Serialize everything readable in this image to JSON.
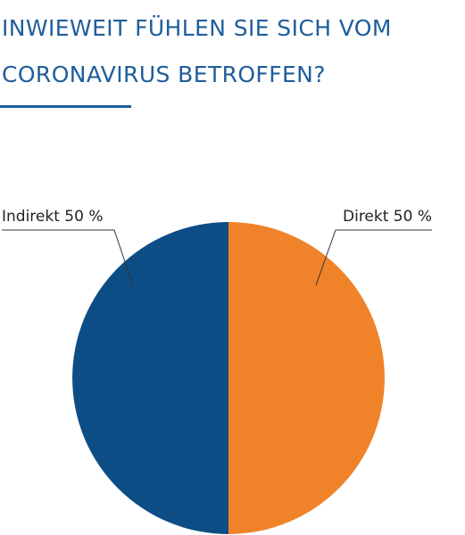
{
  "title": {
    "line1": "INWIEWEIT FÜHLEN SIE SICH VOM",
    "line2": "CORONAVIRUS BETROFFEN?"
  },
  "colors": {
    "title": "#1f5e9a",
    "leader_line": "#333333"
  },
  "chart_data": {
    "type": "pie",
    "title": "INWIEWEIT FÜHLEN SIE SICH VOM CORONAVIRUS BETROFFEN?",
    "start_angle": "12 o'clock",
    "direction": "clockwise",
    "slices": [
      {
        "label": "Direkt 50 %",
        "category": "Direkt",
        "value": 50,
        "unit": "%",
        "color": "#f0832a"
      },
      {
        "label": "Indirekt 50 %",
        "category": "Indirekt",
        "value": 50,
        "unit": "%",
        "color": "#0d4d85"
      }
    ]
  }
}
